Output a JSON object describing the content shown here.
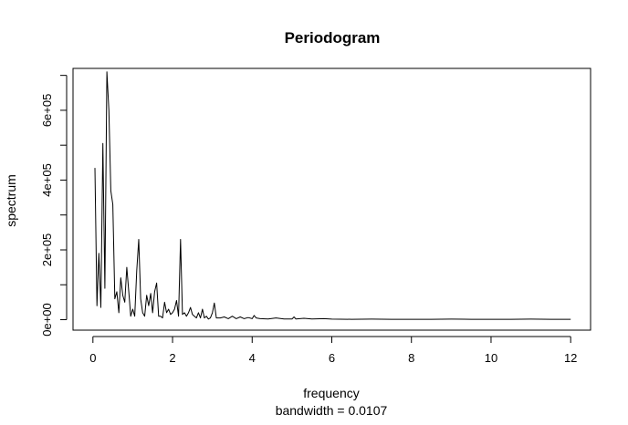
{
  "chart_data": {
    "type": "line",
    "title": "Periodogram",
    "xlabel": "frequency",
    "xlabel_sub": "bandwidth = 0.0107",
    "ylabel": "spectrum",
    "xlim": [
      -0.5,
      12.5
    ],
    "ylim": [
      -30000,
      720000
    ],
    "x_ticks": [
      0,
      2,
      4,
      6,
      8,
      10,
      12
    ],
    "x_tick_labels": [
      "0",
      "2",
      "4",
      "6",
      "8",
      "10",
      "12"
    ],
    "y_ticks": [
      0,
      200000,
      400000,
      600000
    ],
    "y_tick_labels": [
      "0e+00",
      "2e+05",
      "4e+05",
      "6e+05"
    ],
    "y_minor_ticks": [
      100000,
      300000,
      500000,
      700000
    ],
    "grid": false,
    "line_color": "#000000",
    "series": [
      {
        "x": [
          0.05,
          0.1,
          0.15,
          0.2,
          0.25,
          0.3,
          0.35,
          0.4,
          0.45,
          0.5,
          0.55,
          0.6,
          0.65,
          0.7,
          0.75,
          0.8,
          0.85,
          0.9,
          0.95,
          1.0,
          1.05,
          1.1,
          1.15,
          1.2,
          1.25,
          1.3,
          1.35,
          1.4,
          1.45,
          1.5,
          1.55,
          1.6,
          1.65,
          1.7,
          1.75,
          1.8,
          1.85,
          1.9,
          1.95,
          2.0,
          2.05,
          2.1,
          2.15,
          2.2,
          2.25,
          2.3,
          2.35,
          2.4,
          2.45,
          2.5,
          2.55,
          2.6,
          2.65,
          2.7,
          2.75,
          2.8,
          2.85,
          2.9,
          2.95,
          3.0,
          3.05,
          3.1,
          3.2,
          3.3,
          3.4,
          3.5,
          3.6,
          3.7,
          3.8,
          3.9,
          4.0,
          4.05,
          4.1,
          4.2,
          4.4,
          4.6,
          4.8,
          5.0,
          5.05,
          5.1,
          5.3,
          5.5,
          5.8,
          6.0,
          6.5,
          7.0,
          7.5,
          8.0,
          8.5,
          9.0,
          9.5,
          10.0,
          10.5,
          11.0,
          11.5,
          12.0
        ],
        "y": [
          435000,
          40000,
          190000,
          35000,
          505000,
          90000,
          710000,
          600000,
          370000,
          330000,
          60000,
          80000,
          20000,
          120000,
          70000,
          50000,
          150000,
          80000,
          10000,
          30000,
          10000,
          140000,
          230000,
          60000,
          20000,
          10000,
          70000,
          40000,
          75000,
          20000,
          80000,
          105000,
          10000,
          10000,
          5000,
          50000,
          20000,
          30000,
          15000,
          20000,
          30000,
          55000,
          10000,
          230000,
          15000,
          20000,
          10000,
          20000,
          35000,
          15000,
          10000,
          5000,
          20000,
          5000,
          30000,
          5000,
          10000,
          2000,
          5000,
          20000,
          48000,
          5000,
          5000,
          8000,
          3000,
          10000,
          3000,
          8000,
          3000,
          6000,
          3000,
          12000,
          5000,
          3000,
          2000,
          5000,
          2000,
          2000,
          8000,
          2000,
          4000,
          2000,
          3000,
          1500,
          1000,
          1500,
          1000,
          1000,
          1000,
          1500,
          1000,
          1000,
          1000,
          1500,
          1000,
          1000
        ]
      }
    ]
  }
}
